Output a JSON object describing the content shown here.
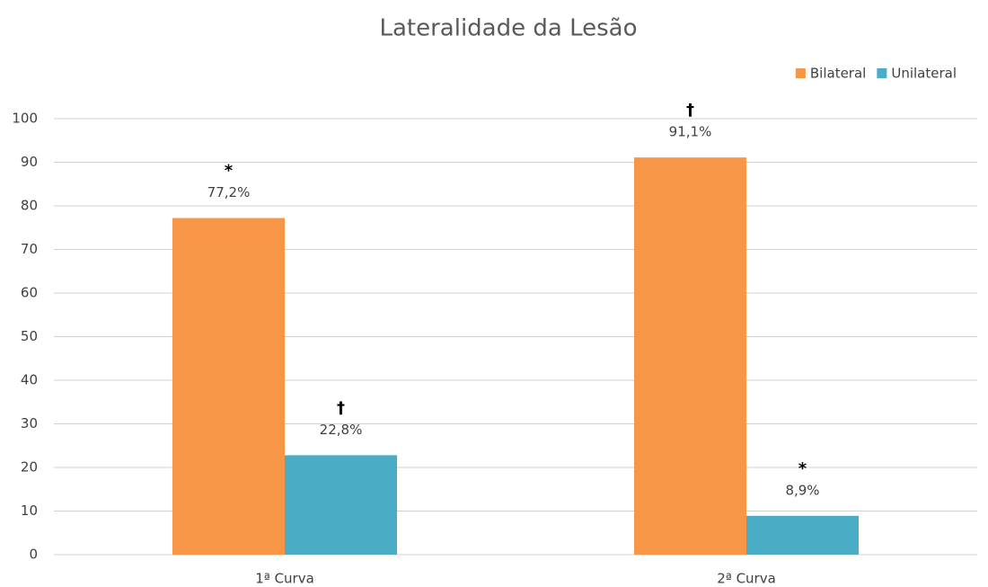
{
  "chart_data": {
    "type": "bar",
    "title": "Lateralidade da Lesão",
    "categories": [
      "1ª Curva",
      "2ª Curva"
    ],
    "series": [
      {
        "name": "Bilateral",
        "color": "#f79646",
        "values": [
          77.2,
          91.1
        ],
        "value_labels": [
          "77,2%",
          "91,1%"
        ],
        "annotations": [
          "*",
          "†"
        ]
      },
      {
        "name": "Unilateral",
        "color": "#4bacc6",
        "values": [
          22.8,
          8.9
        ],
        "value_labels": [
          "22,8%",
          "8,9%"
        ],
        "annotations": [
          "†",
          "*"
        ]
      }
    ],
    "ylim": [
      0,
      100
    ],
    "yticks": [
      0,
      10,
      20,
      30,
      40,
      50,
      60,
      70,
      80,
      90,
      100
    ],
    "grid": true,
    "legend": "top-right"
  }
}
